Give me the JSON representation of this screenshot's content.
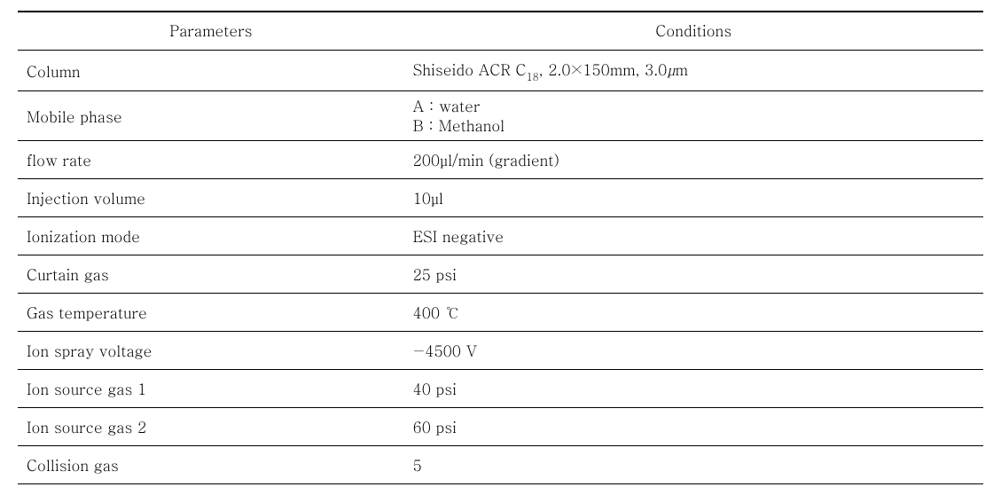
{
  "table": {
    "border_color": "#000000",
    "background_color": "#ffffff",
    "font_family": "Batang / Times New Roman serif",
    "font_size_pt": 13,
    "header_top_rule": "thin-over-thick",
    "row_rule": "thin",
    "bottom_rule": "thick",
    "columns": [
      {
        "key": "param",
        "label": "Parameters",
        "align_header": "center",
        "align_body": "left",
        "width_pct": 40
      },
      {
        "key": "cond",
        "label": "Conditions",
        "align_header": "center",
        "align_body": "left",
        "width_pct": 60
      }
    ],
    "rows": [
      {
        "param": "Column",
        "cond_parts": {
          "prefix": "Shiseido ACR C",
          "sub1": "18",
          "mid": ", 2.0×150mm, 3.0",
          "ital": "μ",
          "suffix": "m"
        }
      },
      {
        "param": "Mobile phase",
        "cond_lines": [
          "A : water",
          "B : Methanol"
        ]
      },
      {
        "param": "flow rate",
        "cond": " 200µl/min (gradient)"
      },
      {
        "param": "Injection volume",
        "cond": "10µl"
      },
      {
        "param": "Ionization mode",
        "cond": "ESI negative"
      },
      {
        "param": "Curtain gas",
        "cond": "25 psi"
      },
      {
        "param": "Gas temperature",
        "cond": "400 ℃"
      },
      {
        "param": "Ion spray voltage",
        "cond": "−4500 V"
      },
      {
        "param": "Ion source gas 1",
        "cond": "40 psi"
      },
      {
        "param": "Ion source gas 2",
        "cond": "60 psi"
      },
      {
        "param": "Collision gas",
        "cond": "5"
      }
    ]
  }
}
